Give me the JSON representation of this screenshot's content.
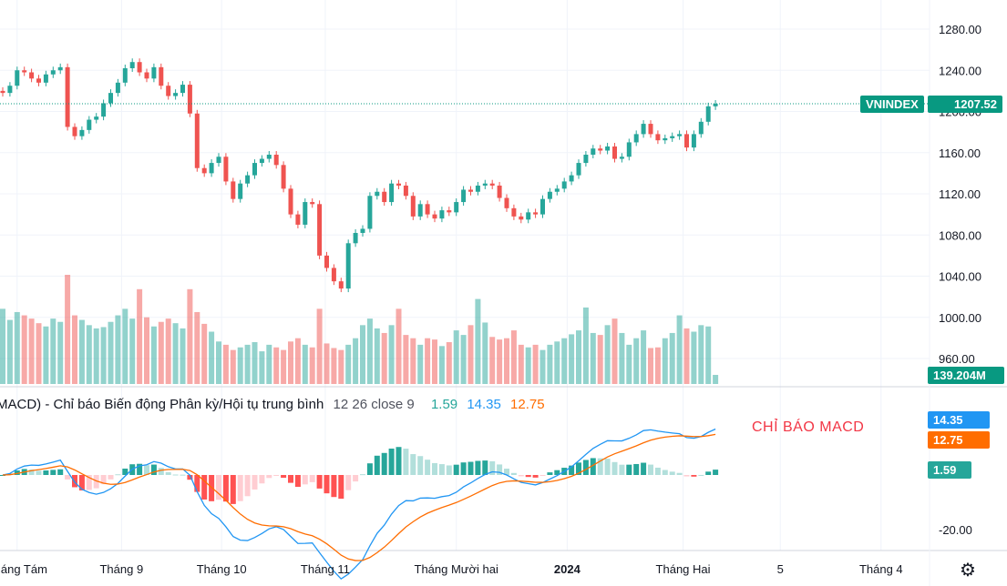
{
  "symbol": "VNINDEX",
  "last_price": "1207.52",
  "last_volume": "139.204M",
  "colors": {
    "up": "#26a69a",
    "down": "#ef5350",
    "macd": "#2196f3",
    "signal": "#ff6d00",
    "grid": "#f0f3fa"
  },
  "macd_legend": {
    "title": "MACD) - Chỉ báo Biến động Phân kỳ/Hội tụ trung bình",
    "params": "12 26 close 9",
    "hist": "1.59",
    "macd": "14.35",
    "signal": "12.75"
  },
  "annotation": "CHỈ BÁO MACD",
  "settings_icon": "gear-icon",
  "chart_data": {
    "type": "candlestick",
    "price_axis": {
      "ticks": [
        960,
        1000,
        1040,
        1080,
        1120,
        1160,
        1200,
        1240,
        1280
      ],
      "labels": [
        "960.00",
        "1000.00",
        "1040.00",
        "1080.00",
        "1120.00",
        "1160.00",
        "1200.00",
        "1240.00",
        "1280.00"
      ],
      "range": [
        950,
        1290
      ]
    },
    "macd_axis": {
      "labels": [
        "-20.00"
      ]
    },
    "time_labels": [
      "Tháng Tám",
      "Tháng 9",
      "Tháng 10",
      "Tháng 11",
      "Tháng Mười hai",
      "2024",
      "Tháng Hai",
      "5",
      "Tháng 4"
    ],
    "closes": [
      1218,
      1225,
      1240,
      1238,
      1232,
      1228,
      1236,
      1240,
      1243,
      1185,
      1176,
      1182,
      1192,
      1195,
      1208,
      1218,
      1228,
      1242,
      1248,
      1238,
      1232,
      1243,
      1225,
      1215,
      1218,
      1226,
      1198,
      1145,
      1140,
      1150,
      1156,
      1132,
      1115,
      1130,
      1138,
      1150,
      1154,
      1158,
      1148,
      1125,
      1100,
      1090,
      1112,
      1110,
      1060,
      1048,
      1035,
      1028,
      1072,
      1082,
      1086,
      1118,
      1122,
      1112,
      1130,
      1128,
      1118,
      1098,
      1110,
      1100,
      1096,
      1104,
      1102,
      1112,
      1124,
      1122,
      1128,
      1130,
      1128,
      1116,
      1106,
      1098,
      1095,
      1102,
      1100,
      1115,
      1122,
      1125,
      1132,
      1138,
      1150,
      1158,
      1164,
      1162,
      1166,
      1154,
      1156,
      1170,
      1178,
      1188,
      1178,
      1172,
      1174,
      1176,
      1178,
      1165,
      1178,
      1190,
      1205,
      1207.52
    ],
    "volumes_m": [
      1150,
      980,
      1100,
      1050,
      1000,
      930,
      880,
      1000,
      950,
      1670,
      1050,
      980,
      900,
      850,
      870,
      950,
      1050,
      1150,
      1000,
      1450,
      1020,
      880,
      950,
      1000,
      930,
      850,
      1450,
      1100,
      920,
      800,
      650,
      600,
      520,
      560,
      600,
      640,
      500,
      600,
      560,
      520,
      650,
      700,
      600,
      560,
      1150,
      620,
      550,
      520,
      600,
      700,
      900,
      1000,
      850,
      780,
      900,
      1150,
      750,
      700,
      600,
      700,
      680,
      580,
      640,
      820,
      750,
      900,
      1300,
      940,
      720,
      680,
      700,
      820,
      600,
      560,
      600,
      520,
      600,
      650,
      700,
      760,
      820,
      1170,
      780,
      750,
      900,
      1000,
      780,
      600,
      700,
      820,
      550,
      560,
      700,
      780,
      1050,
      850,
      800,
      900,
      880,
      139.204
    ]
  }
}
